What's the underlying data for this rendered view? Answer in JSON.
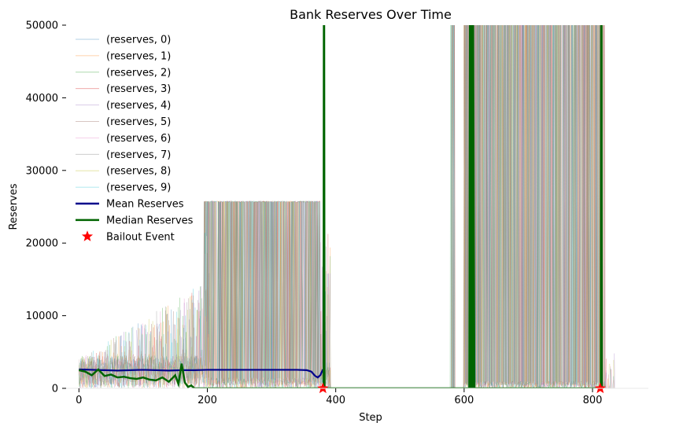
{
  "chart_data": {
    "type": "line",
    "title": "Bank Reserves Over Time",
    "xlabel": "Step",
    "ylabel": "Reserves",
    "xlim": [
      -20,
      887
    ],
    "ylim": [
      0,
      50000
    ],
    "xticks": [
      0,
      200,
      400,
      600,
      800
    ],
    "yticks": [
      0,
      10000,
      20000,
      30000,
      40000,
      50000
    ],
    "grid": false,
    "legend_placement": "upper-left",
    "series": [
      {
        "name": "(reserves, 0)",
        "color": "#1f77b4"
      },
      {
        "name": "(reserves, 1)",
        "color": "#ff7f0e"
      },
      {
        "name": "(reserves, 2)",
        "color": "#2ca02c"
      },
      {
        "name": "(reserves, 3)",
        "color": "#d62728"
      },
      {
        "name": "(reserves, 4)",
        "color": "#9467bd"
      },
      {
        "name": "(reserves, 5)",
        "color": "#8c564b"
      },
      {
        "name": "(reserves, 6)",
        "color": "#e377c2"
      },
      {
        "name": "(reserves, 7)",
        "color": "#7f7f7f"
      },
      {
        "name": "(reserves, 8)",
        "color": "#bcbd22"
      },
      {
        "name": "(reserves, 9)",
        "color": "#17becf"
      }
    ],
    "mean": {
      "name": "Mean Reserves",
      "color": "#00008b",
      "x": [
        0,
        20,
        40,
        60,
        80,
        100,
        120,
        140,
        160,
        180,
        200,
        250,
        300,
        340,
        355,
        362,
        368,
        372,
        376,
        378,
        380
      ],
      "y": [
        2600,
        2550,
        2500,
        2450,
        2500,
        2550,
        2500,
        2450,
        2500,
        2500,
        2550,
        2550,
        2550,
        2550,
        2500,
        2300,
        1700,
        1500,
        1800,
        2200,
        2600
      ]
    },
    "median": {
      "name": "Median Reserves",
      "color": "#006400",
      "x": [
        0,
        10,
        20,
        30,
        40,
        50,
        60,
        70,
        80,
        90,
        100,
        110,
        120,
        130,
        140,
        150,
        155,
        160,
        165,
        170,
        175,
        180,
        185,
        190,
        380,
        381,
        381.5,
        382,
        382.5,
        600,
        608,
        609,
        610,
        612,
        613,
        614,
        616,
        617,
        812,
        813,
        813.5,
        814,
        814.5
      ],
      "y": [
        2500,
        2300,
        1800,
        2600,
        1700,
        1900,
        1500,
        1600,
        1400,
        1300,
        1500,
        1200,
        1100,
        1500,
        900,
        1800,
        600,
        3400,
        800,
        200,
        400,
        0,
        0,
        0,
        0,
        0,
        50000,
        50000,
        0,
        0,
        0,
        50000,
        0,
        50000,
        0,
        50000,
        0,
        0,
        0,
        0,
        50000,
        50000,
        0
      ]
    },
    "bailout": {
      "name": "Bailout Event",
      "color": "#ff0000",
      "x": [
        380,
        812
      ],
      "y": [
        0,
        0
      ]
    }
  }
}
